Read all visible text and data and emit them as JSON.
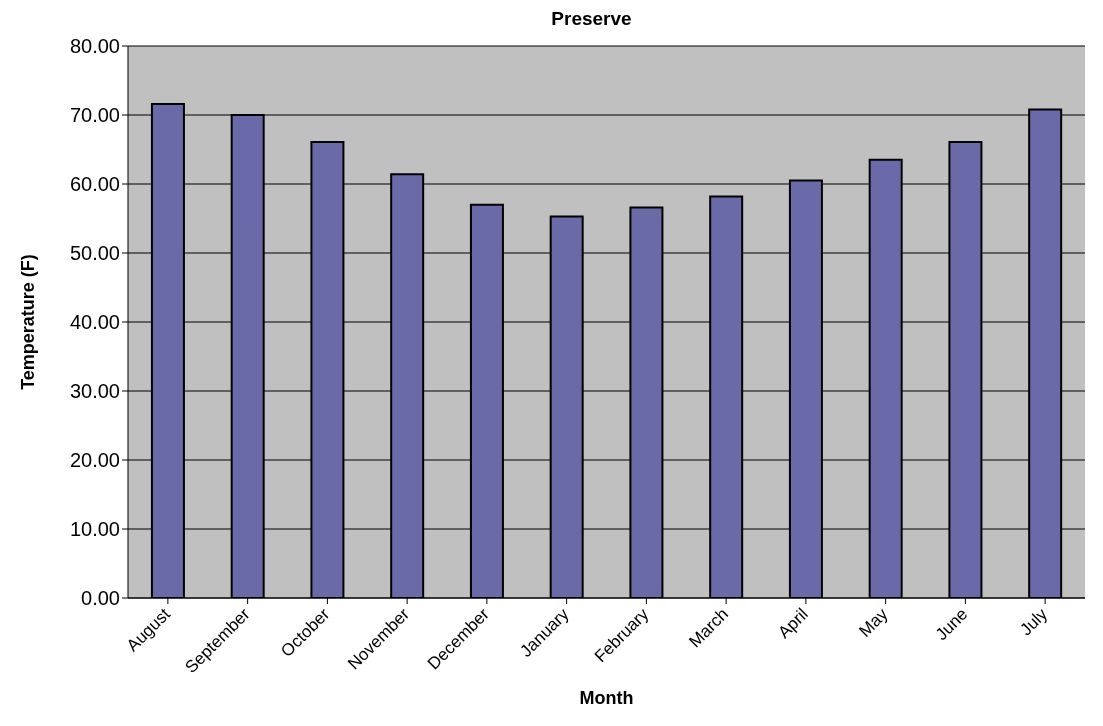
{
  "chart_data": {
    "type": "bar",
    "title": "Preserve",
    "xlabel": "Month",
    "ylabel": "Temperature (F)",
    "categories": [
      "August",
      "September",
      "October",
      "November",
      "December",
      "January",
      "February",
      "March",
      "April",
      "May",
      "June",
      "July"
    ],
    "values": [
      71.6,
      70.0,
      66.1,
      61.4,
      57.0,
      55.3,
      56.6,
      58.2,
      60.5,
      63.5,
      66.1,
      70.8
    ],
    "color": "#6b6aa8",
    "ylim": [
      0,
      80
    ],
    "yticks": [
      {
        "value": 0,
        "label": "0.00"
      },
      {
        "value": 10,
        "label": "10.00"
      },
      {
        "value": 20,
        "label": "20.00"
      },
      {
        "value": 30,
        "label": "30.00"
      },
      {
        "value": 40,
        "label": "40.00"
      },
      {
        "value": 50,
        "label": "50.00"
      },
      {
        "value": 60,
        "label": "60.00"
      },
      {
        "value": 70,
        "label": "70.00"
      },
      {
        "value": 80,
        "label": "80.00"
      }
    ],
    "grid": "y"
  }
}
